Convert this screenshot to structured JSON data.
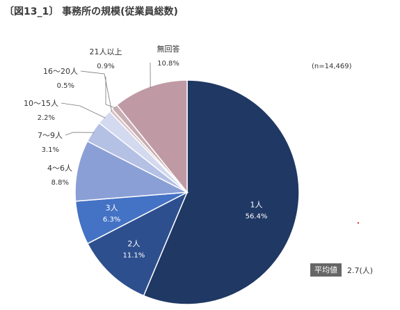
{
  "title": "〔図13_1〕 事務所の規模(従業員総数)",
  "sample_note": "(n=14,469)",
  "average": {
    "tag": "平均値",
    "value": "2.7(人)"
  },
  "colors": {
    "1人": "#1f3864",
    "2人": "#2e4f8e",
    "3人": "#4472c4",
    "4～6人": "#8a9fd6",
    "7～9人": "#b4c0e4",
    "10～15人": "#d3daef",
    "16～20人": "#d9c2c6",
    "21人以上": "#c8aeb3",
    "無回答": "#bf9aa4"
  },
  "chart_data": {
    "type": "pie",
    "title": "〔図13_1〕 事務所の規模(従業員総数)",
    "start": "12 o'clock",
    "direction": "clockwise",
    "slices": [
      {
        "label": "1人",
        "value": 56.4,
        "display": "56.4%"
      },
      {
        "label": "2人",
        "value": 11.1,
        "display": "11.1%"
      },
      {
        "label": "3人",
        "value": 6.3,
        "display": "6.3%"
      },
      {
        "label": "4～6人",
        "value": 8.8,
        "display": "8.8%"
      },
      {
        "label": "7～9人",
        "value": 3.1,
        "display": "3.1%"
      },
      {
        "label": "10～15人",
        "value": 2.2,
        "display": "2.2%"
      },
      {
        "label": "16～20人",
        "value": 0.5,
        "display": "0.5%"
      },
      {
        "label": "21人以上",
        "value": 0.9,
        "display": "0.9%"
      },
      {
        "label": "無回答",
        "value": 10.8,
        "display": "10.8%"
      }
    ]
  }
}
